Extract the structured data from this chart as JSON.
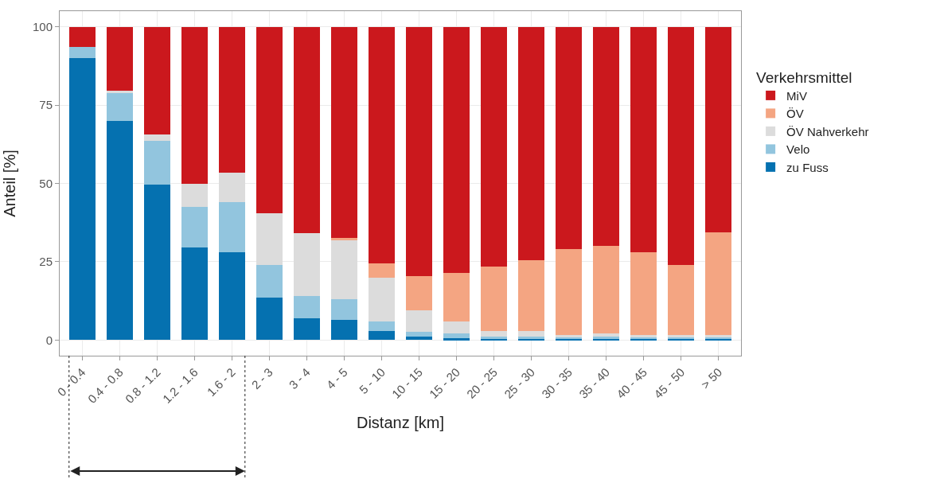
{
  "chart_data": {
    "type": "bar",
    "stacked": true,
    "xlabel": "Distanz [km]",
    "ylabel": "Anteil [%]",
    "legend_title": "Verkehrsmittel",
    "legend": "right",
    "grid": true,
    "categories": [
      "0 - 0.4",
      "0.4 - 0.8",
      "0.8 - 1.2",
      "1.2 - 1.6",
      "1.6 - 2",
      "2 - 3",
      "3 - 4",
      "4 - 5",
      "5 - 10",
      "10 - 15",
      "15 - 20",
      "20 - 25",
      "25 - 30",
      "30 - 35",
      "35 - 40",
      "40 - 45",
      "45 - 50",
      "> 50"
    ],
    "ylim": [
      -5,
      105
    ],
    "yticks": [
      0,
      25,
      50,
      75,
      100
    ],
    "series": [
      {
        "name": "zu Fuss",
        "color": "#0571b0",
        "values": [
          90,
          70,
          49.5,
          29.5,
          28,
          13.5,
          7,
          6.5,
          3,
          1,
          0.5,
          0.5,
          0.5,
          0.5,
          0.5,
          0.5,
          0.5,
          0.5
        ]
      },
      {
        "name": "Velo",
        "color": "#92c5de",
        "values": [
          3.5,
          9,
          14,
          13,
          16,
          10.5,
          7,
          6.5,
          3,
          1.5,
          1.5,
          0.5,
          0.5,
          0.5,
          0.5,
          0.5,
          0.5,
          0.5
        ]
      },
      {
        "name": "ÖV Nahverkehr",
        "color": "#dcdcdc",
        "values": [
          0,
          0.5,
          2,
          7.5,
          9.5,
          16.5,
          20,
          19,
          14,
          7,
          4,
          2,
          2,
          0.5,
          1,
          0.5,
          0.5,
          0.5
        ]
      },
      {
        "name": "ÖV",
        "color": "#f4a582",
        "values": [
          0,
          0,
          0,
          0,
          0,
          0,
          0,
          0.5,
          4.5,
          11,
          15.5,
          20.5,
          22.5,
          27.5,
          28,
          26.5,
          22.5,
          33
        ]
      },
      {
        "name": "MiV",
        "color": "#cb181d",
        "values": [
          6.5,
          20.5,
          34.5,
          50,
          46.5,
          59.5,
          66,
          67.5,
          75.5,
          79.5,
          78.5,
          76.5,
          74.5,
          71,
          70,
          72,
          76,
          65.5
        ]
      }
    ]
  }
}
